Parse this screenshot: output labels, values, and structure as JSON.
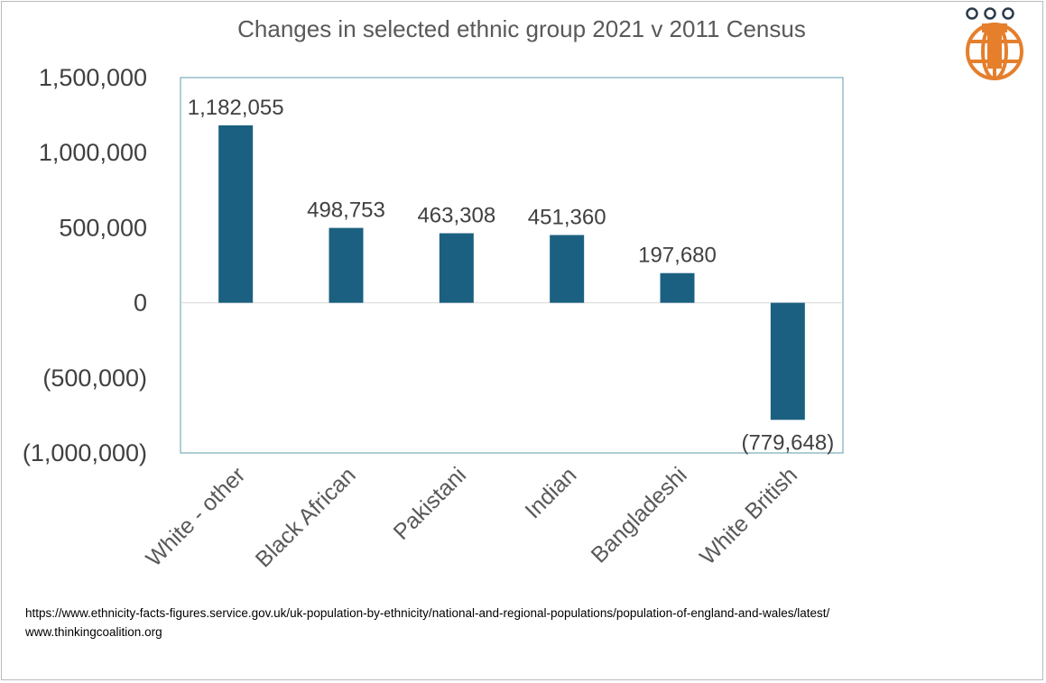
{
  "chart_data": {
    "type": "bar",
    "title": "Changes in selected ethnic group 2021 v 2011 Census",
    "categories": [
      "White - other",
      "Black African",
      "Pakistani",
      "Indian",
      "Bangladeshi",
      "White British"
    ],
    "values": [
      1182055,
      498753,
      463308,
      451360,
      197680,
      -779648
    ],
    "data_labels": [
      "1,182,055",
      "498,753",
      "463,308",
      "451,360",
      "197,680",
      "(779,648)"
    ],
    "y_ticks": [
      {
        "value": 1500000,
        "label": "1,500,000"
      },
      {
        "value": 1000000,
        "label": "1,000,000"
      },
      {
        "value": 500000,
        "label": "500,000"
      },
      {
        "value": 0,
        "label": "0"
      },
      {
        "value": -500000,
        "label": "(500,000)"
      },
      {
        "value": -1000000,
        "label": "(1,000,000)"
      }
    ],
    "ylim": [
      -1000000,
      1500000
    ],
    "xlabel": "",
    "ylabel": "",
    "bar_color": "#1b6080",
    "axis_color": "#5e9eab"
  },
  "source": {
    "url": "https://www.ethnicity-facts-figures.service.gov.uk/uk-population-by-ethnicity/national-and-regional-populations/population-of-england-and-wales/latest/",
    "site": "www.thinkingcoalition.org"
  },
  "logo": {
    "icon": "globe-people-logo-icon",
    "color": "#e57f2c",
    "dark": "#2a3a4a"
  }
}
